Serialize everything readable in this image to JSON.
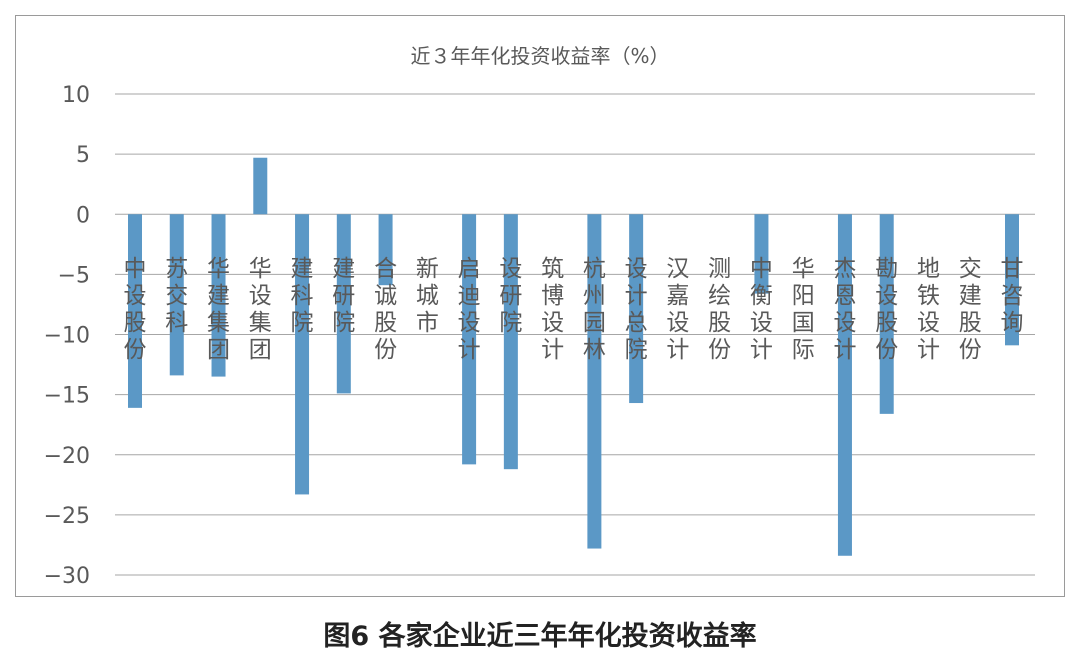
{
  "chart_data": {
    "type": "bar",
    "title": "近３年年化投资收益率（%）",
    "caption": "图6   各家企业近三年年化投资收益率",
    "categories": [
      "中设股份",
      "苏交科",
      "华建集团",
      "华设集团",
      "建科院",
      "建研院",
      "合诚股份",
      "新城市",
      "启迪设计",
      "设研院",
      "筑博设计",
      "杭州园林",
      "设计总院",
      "汉嘉设计",
      "测绘股份",
      "中衡设计",
      "华阳国际",
      "杰恩设计",
      "勘设股份",
      "地铁设计",
      "交建股份",
      "甘咨询"
    ],
    "values": [
      -16.1,
      -13.4,
      -13.5,
      4.7,
      -23.3,
      -14.9,
      -5.9,
      0,
      -20.8,
      -21.2,
      0,
      -27.8,
      -15.7,
      0,
      0,
      -6.6,
      0,
      -28.4,
      -16.6,
      0,
      0,
      -10.9
    ],
    "ylim": [
      -30,
      10
    ],
    "yticks": [
      10,
      5,
      0,
      -5,
      -10,
      -15,
      -20,
      -25,
      -30
    ],
    "ytick_labels": [
      "10",
      "5",
      "0",
      "−5",
      "−10",
      "−15",
      "−20",
      "−25",
      "−30"
    ],
    "grid": true,
    "bar_color": "#5b98c6"
  }
}
